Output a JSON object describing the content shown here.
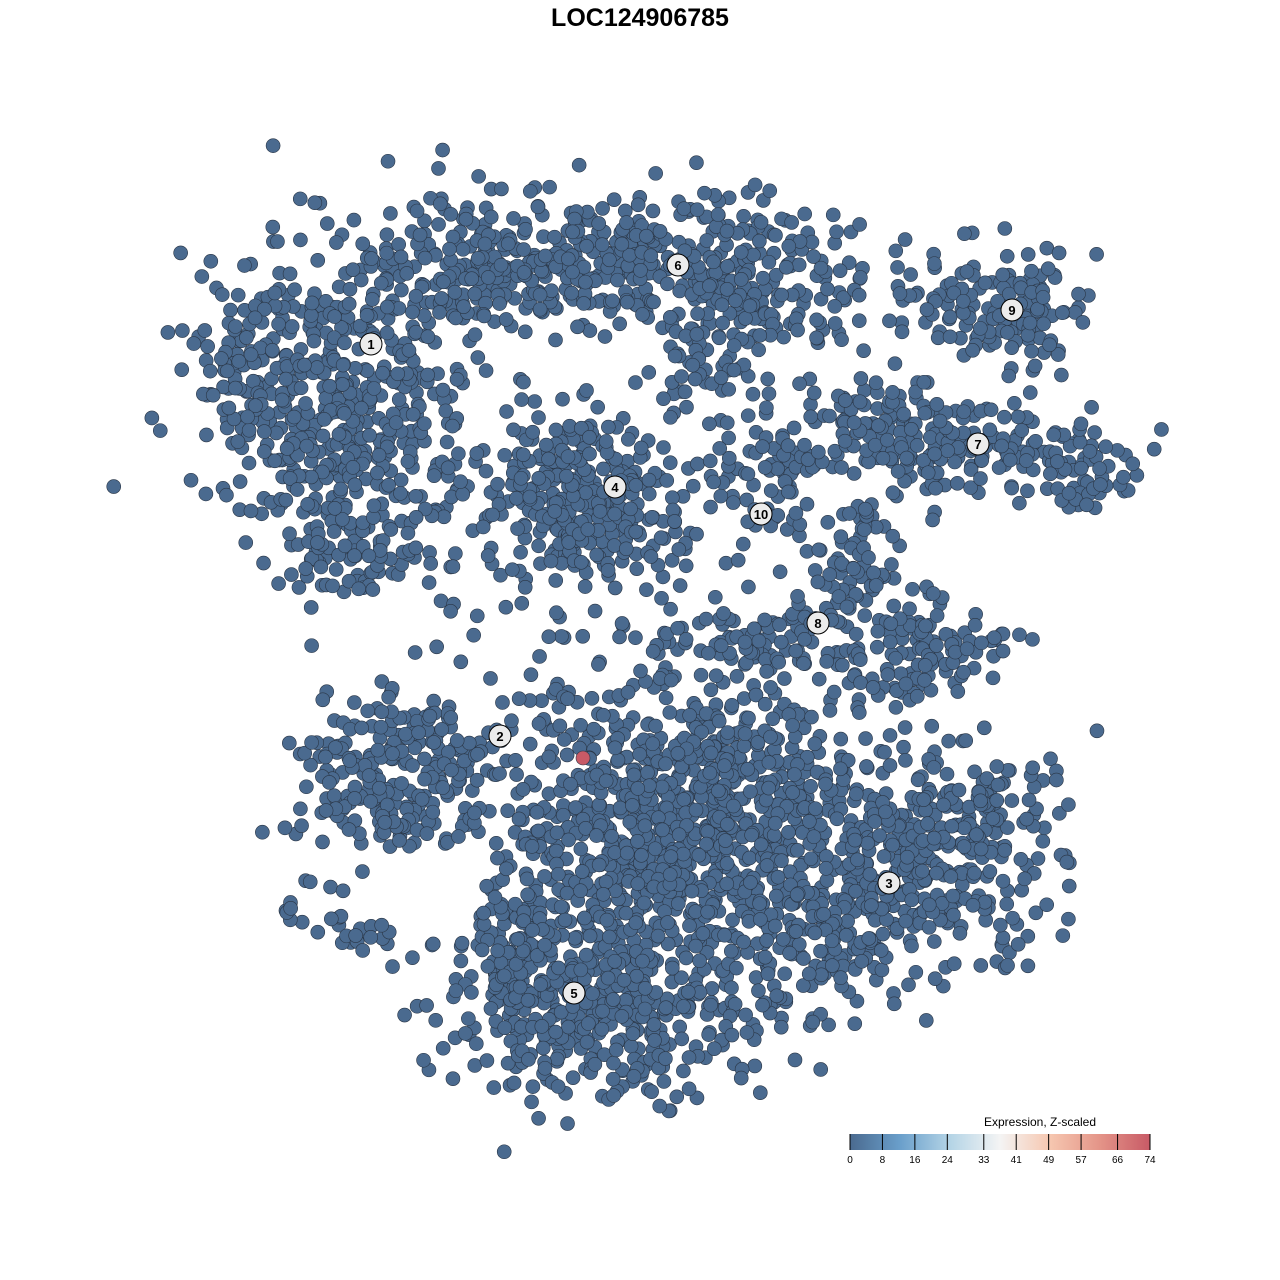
{
  "chart_data": {
    "type": "scatter",
    "title": "LOC124906785",
    "xlabel": "",
    "ylabel": "",
    "grid": false,
    "clusters": [
      "1",
      "2",
      "3",
      "4",
      "5",
      "6",
      "7",
      "8",
      "9",
      "10"
    ],
    "expression": {
      "baseline_value": 0,
      "highlighted_points": [
        {
          "cluster": "2",
          "value": 74
        }
      ]
    },
    "colorbar": {
      "title": "Expression, Z-scaled",
      "ticks": [
        0,
        8,
        16,
        24,
        33,
        41,
        49,
        57,
        66,
        74
      ],
      "range": [
        0,
        74
      ],
      "colors": [
        "#4a6a8f",
        "#6a9fcb",
        "#b4d4e6",
        "#f4f4f4",
        "#f6c7b0",
        "#e49488",
        "#c85a66"
      ],
      "placement": "bottom-right"
    }
  }
}
